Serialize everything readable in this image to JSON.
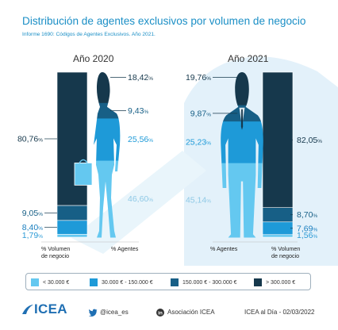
{
  "title": "Distribución de agentes exclusivos por volumen de negocio",
  "subtitle": "Informe 1690: Códigos de Agentes Exclusivos. Año 2021.",
  "chart_data": {
    "type": "bar",
    "title": "Distribución de agentes exclusivos por volumen de negocio",
    "subtitle": "Informe 1690: Códigos de Agentes Exclusivos. Año 2021.",
    "unit": "%",
    "categories": [
      "< 30.000 €",
      "30.000 € - 150.000 €",
      "150.000 € - 300.000 €",
      "> 300.000 €"
    ],
    "colors": [
      "#64c8f0",
      "#1e9ad8",
      "#175f86",
      "#16384c"
    ],
    "panels": [
      {
        "year": "Año 2020",
        "figure": "woman",
        "bar_label": "% Volumen de negocio",
        "figure_label": "% Agentes",
        "volumen_negocio": [
          1.79,
          8.4,
          9.05,
          80.76
        ],
        "agentes": [
          46.6,
          25.56,
          9.43,
          18.42
        ]
      },
      {
        "year": "Año 2021",
        "figure": "man",
        "bar_label": "% Volumen de negocio",
        "figure_label": "% Agentes",
        "volumen_negocio": [
          1.56,
          7.69,
          8.7,
          82.05
        ],
        "agentes": [
          45.14,
          25.23,
          9.87,
          19.76
        ]
      }
    ]
  },
  "legend": {
    "items": [
      "< 30.000 €",
      "30.000 € - 150.000 €",
      "150.000 € - 300.000 €",
      "> 300.000 €"
    ]
  },
  "labels": {
    "volumen_line1": "% Volumen",
    "volumen_line2": "de negocio",
    "agentes": "% Agentes"
  },
  "footer": {
    "logo": "ICEA",
    "twitter": "@icea_es",
    "linkedin": "Asociación ICEA",
    "source": "ICEA al Día - 02/03/2022"
  },
  "icons": [
    "twitter-icon",
    "linkedin-icon",
    "icea-logo-mark"
  ]
}
